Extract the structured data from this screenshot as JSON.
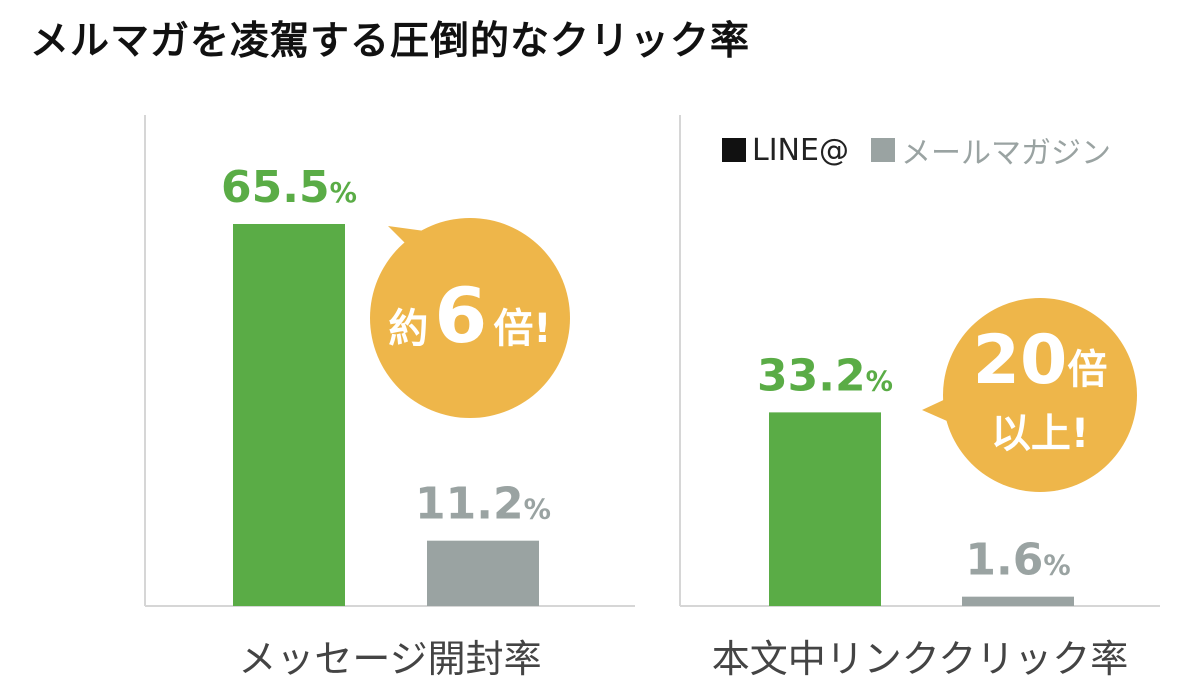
{
  "title": "メルマガを凌駕する圧倒的なクリック率",
  "colors": {
    "line": "#5aac46",
    "mail": "#9aa3a2",
    "badge": "#eeb64a",
    "axis": "#d6d6d6",
    "text": "#444444"
  },
  "legend": {
    "line": "LINE@",
    "mail": "メールマガジン"
  },
  "chart_data": [
    {
      "type": "bar",
      "category": "メッセージ開封率",
      "series": [
        {
          "name": "LINE@",
          "value": 65.5,
          "label": "65.5",
          "unit": "%"
        },
        {
          "name": "メールマガジン",
          "value": 11.2,
          "label": "11.2",
          "unit": "%"
        }
      ],
      "ylim": [
        0,
        80
      ],
      "callout": {
        "pre": "約",
        "big": "6",
        "post": "倍!"
      }
    },
    {
      "type": "bar",
      "category": "本文中リンククリック率",
      "series": [
        {
          "name": "LINE@",
          "value": 33.2,
          "label": "33.2",
          "unit": "%"
        },
        {
          "name": "メールマガジン",
          "value": 1.6,
          "label": "1.6",
          "unit": "%"
        }
      ],
      "ylim": [
        0,
        80
      ],
      "callout": {
        "big": "20",
        "post": "倍",
        "line2": "以上!"
      }
    }
  ]
}
